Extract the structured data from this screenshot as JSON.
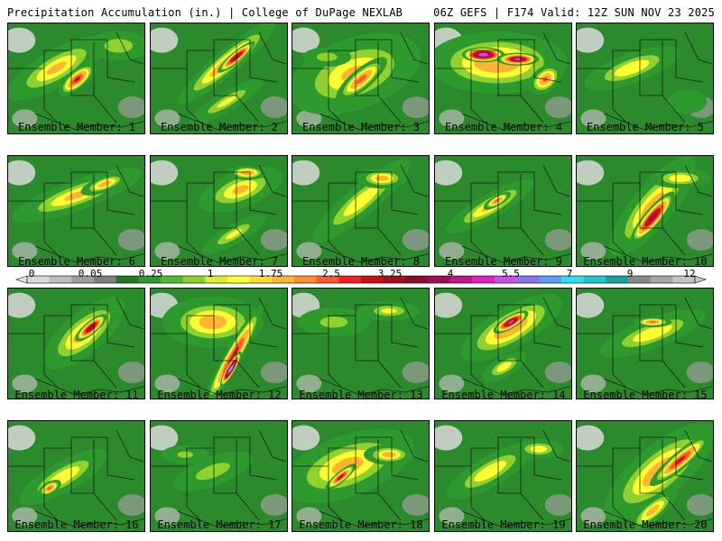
{
  "header": {
    "left": "Precipitation Accumulation (in.) | College of DuPage NEXLAB",
    "right": "06Z GEFS | F174 Valid: 12Z SUN NOV 23 2025"
  },
  "colorbar": {
    "tick_labels": [
      "0",
      "0.05",
      "0.25",
      "1",
      "1.75",
      "2.5",
      "3.25",
      "4",
      "5.5",
      "7",
      "9",
      "12"
    ],
    "colors": [
      "#d9d9d9",
      "#bdbdbd",
      "#9e9e9e",
      "#7f7f7f",
      "#1f7a1f",
      "#2e9a2e",
      "#4fba2f",
      "#8fd12f",
      "#d9ee2f",
      "#ffff33",
      "#ffd92f",
      "#ffb52f",
      "#ff8c2f",
      "#ff5a2f",
      "#ee2020",
      "#cc1010",
      "#a50f1a",
      "#8a0d2a",
      "#a00c5a",
      "#c0188a",
      "#e020c0",
      "#c54fe8",
      "#8b6ff0",
      "#5aa0f0",
      "#2ee0f0",
      "#22c8c8",
      "#1aa0a0",
      "#888888",
      "#a6a6a6",
      "#c4c4c4"
    ]
  },
  "members": [
    {
      "label": "Ensemble Member: 1",
      "blobs": [
        [
          0.35,
          0.4,
          0.45,
          0.18,
          1.8,
          -30
        ],
        [
          0.5,
          0.5,
          0.18,
          0.09,
          3.0,
          -40
        ],
        [
          0.8,
          0.2,
          0.25,
          0.15,
          1.3,
          0
        ]
      ]
    },
    {
      "label": "Ensemble Member: 2",
      "blobs": [
        [
          0.55,
          0.35,
          0.5,
          0.12,
          2.2,
          -40
        ],
        [
          0.62,
          0.3,
          0.18,
          0.05,
          4.2,
          -40
        ],
        [
          0.55,
          0.7,
          0.35,
          0.1,
          1.4,
          -30
        ]
      ]
    },
    {
      "label": "Ensemble Member: 3",
      "blobs": [
        [
          0.45,
          0.45,
          0.55,
          0.35,
          1.8,
          -20
        ],
        [
          0.5,
          0.5,
          0.25,
          0.1,
          2.6,
          -40
        ],
        [
          0.25,
          0.3,
          0.2,
          0.1,
          1.2,
          0
        ]
      ]
    },
    {
      "label": "Ensemble Member: 4",
      "blobs": [
        [
          0.45,
          0.35,
          0.55,
          0.3,
          2.2,
          0
        ],
        [
          0.35,
          0.28,
          0.16,
          0.07,
          5.5,
          0
        ],
        [
          0.6,
          0.32,
          0.16,
          0.06,
          4.6,
          0
        ],
        [
          0.8,
          0.5,
          0.15,
          0.12,
          2.4,
          -40
        ]
      ]
    },
    {
      "label": "Ensemble Member: 5",
      "blobs": [
        [
          0.4,
          0.4,
          0.4,
          0.15,
          1.7,
          -20
        ],
        [
          0.8,
          0.7,
          0.2,
          0.15,
          0.3,
          0
        ]
      ]
    },
    {
      "label": "Ensemble Member: 6",
      "blobs": [
        [
          0.5,
          0.35,
          0.55,
          0.15,
          1.8,
          -20
        ],
        [
          0.7,
          0.25,
          0.2,
          0.08,
          2.0,
          -20
        ]
      ]
    },
    {
      "label": "Ensemble Member: 7",
      "blobs": [
        [
          0.65,
          0.3,
          0.35,
          0.18,
          1.8,
          -20
        ],
        [
          0.7,
          0.15,
          0.15,
          0.07,
          2.3,
          0
        ],
        [
          0.6,
          0.7,
          0.3,
          0.1,
          1.4,
          -30
        ]
      ]
    },
    {
      "label": "Ensemble Member: 8",
      "blobs": [
        [
          0.5,
          0.4,
          0.5,
          0.15,
          1.7,
          -40
        ],
        [
          0.65,
          0.2,
          0.2,
          0.1,
          2.0,
          0
        ]
      ]
    },
    {
      "label": "Ensemble Member: 9",
      "blobs": [
        [
          0.4,
          0.45,
          0.4,
          0.12,
          1.8,
          -30
        ],
        [
          0.45,
          0.4,
          0.12,
          0.05,
          2.6,
          -30
        ]
      ]
    },
    {
      "label": "Ensemble Member: 10",
      "blobs": [
        [
          0.55,
          0.45,
          0.5,
          0.2,
          2.0,
          -50
        ],
        [
          0.55,
          0.55,
          0.25,
          0.08,
          4.2,
          -50
        ],
        [
          0.75,
          0.2,
          0.25,
          0.1,
          1.7,
          0
        ]
      ]
    },
    {
      "label": "Ensemble Member: 11",
      "blobs": [
        [
          0.55,
          0.4,
          0.4,
          0.2,
          2.0,
          -40
        ],
        [
          0.6,
          0.35,
          0.15,
          0.06,
          4.3,
          -40
        ]
      ]
    },
    {
      "label": "Ensemble Member: 12",
      "blobs": [
        [
          0.45,
          0.3,
          0.4,
          0.25,
          2.0,
          0
        ],
        [
          0.6,
          0.6,
          0.45,
          0.08,
          3.2,
          -60
        ],
        [
          0.58,
          0.72,
          0.15,
          0.04,
          6.0,
          -60
        ]
      ]
    },
    {
      "label": "Ensemble Member: 13",
      "blobs": [
        [
          0.3,
          0.3,
          0.3,
          0.15,
          1.1,
          0
        ],
        [
          0.7,
          0.2,
          0.25,
          0.1,
          1.4,
          0
        ]
      ]
    },
    {
      "label": "Ensemble Member: 14",
      "blobs": [
        [
          0.55,
          0.35,
          0.45,
          0.2,
          2.2,
          -30
        ],
        [
          0.55,
          0.3,
          0.15,
          0.06,
          4.6,
          -30
        ],
        [
          0.5,
          0.7,
          0.2,
          0.1,
          1.6,
          -30
        ]
      ]
    },
    {
      "label": "Ensemble Member: 15",
      "blobs": [
        [
          0.55,
          0.4,
          0.45,
          0.15,
          1.7,
          -20
        ],
        [
          0.55,
          0.3,
          0.15,
          0.05,
          2.4,
          0
        ]
      ]
    },
    {
      "label": "Ensemble Member: 16",
      "blobs": [
        [
          0.4,
          0.5,
          0.4,
          0.15,
          1.7,
          -30
        ],
        [
          0.3,
          0.6,
          0.1,
          0.06,
          2.6,
          -30
        ]
      ]
    },
    {
      "label": "Ensemble Member: 17",
      "blobs": [
        [
          0.45,
          0.45,
          0.35,
          0.15,
          1.2,
          -20
        ],
        [
          0.25,
          0.3,
          0.2,
          0.1,
          1.0,
          0
        ]
      ]
    },
    {
      "label": "Ensemble Member: 18",
      "blobs": [
        [
          0.4,
          0.4,
          0.55,
          0.3,
          1.9,
          -20
        ],
        [
          0.35,
          0.5,
          0.15,
          0.05,
          3.5,
          -40
        ],
        [
          0.7,
          0.3,
          0.2,
          0.1,
          2.0,
          0
        ]
      ]
    },
    {
      "label": "Ensemble Member: 19",
      "blobs": [
        [
          0.4,
          0.45,
          0.4,
          0.15,
          1.7,
          -30
        ],
        [
          0.75,
          0.25,
          0.2,
          0.1,
          1.6,
          0
        ]
      ]
    },
    {
      "label": "Ensemble Member: 20",
      "blobs": [
        [
          0.6,
          0.45,
          0.55,
          0.25,
          2.1,
          -40
        ],
        [
          0.75,
          0.35,
          0.3,
          0.08,
          3.2,
          -40
        ],
        [
          0.55,
          0.8,
          0.25,
          0.1,
          2.0,
          -40
        ]
      ]
    }
  ]
}
